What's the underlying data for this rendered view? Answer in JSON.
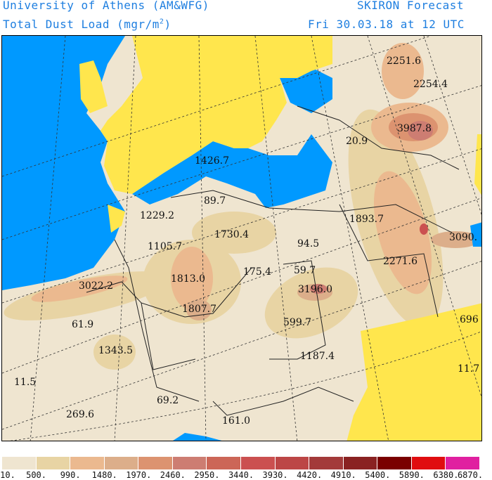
{
  "header": {
    "institution": "University of Athens (AM&WFG)",
    "model": "SKIRON Forecast",
    "variable": "Total Dust Load (mgr/m",
    "variable_sup": "2",
    "variable_close": ")",
    "valid_time": "Fri 30.03.18 at 12 UTC"
  },
  "map": {
    "colors": {
      "ocean": "#0099ff",
      "low_land": "#ffe64d",
      "background": "#efe5d0"
    },
    "labels": [
      "2251.6",
      "2254.4",
      "3987.8",
      "20.9",
      "1426.7",
      "89.7",
      "1229.2",
      "1730.4",
      "1105.7",
      "94.5",
      "1893.7",
      "3090.",
      "2271.6",
      "175.4",
      "59.7",
      "3022.2",
      "1813.0",
      "3196.0",
      "1807.7",
      "599.7",
      "696",
      "61.9",
      "1343.5",
      "1187.4",
      "11.7",
      "11.5",
      "69.2",
      "269.6",
      "161.0"
    ]
  },
  "colorbar": {
    "colors": [
      "#efe5d0",
      "#e8d4a4",
      "#ebb98f",
      "#dcae8a",
      "#dc9370",
      "#cd7d72",
      "#cc6657",
      "#cb5050",
      "#bc4646",
      "#a33a3a",
      "#8a2222",
      "#7a0000",
      "#e00d10",
      "#e020a0"
    ],
    "ticks": [
      "10.",
      "500.",
      "990.",
      "1480.",
      "1970.",
      "2460.",
      "2950.",
      "3440.",
      "3930.",
      "4420.",
      "4910.",
      "5400.",
      "5890.",
      "6380.",
      "6870."
    ]
  }
}
